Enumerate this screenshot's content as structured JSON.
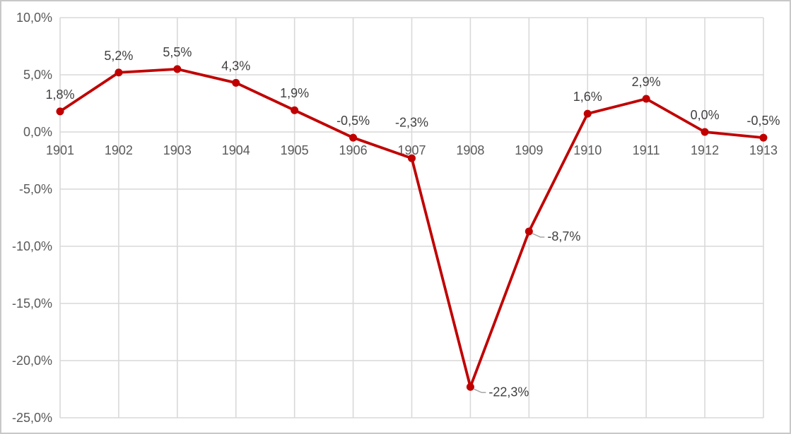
{
  "chart_data": {
    "type": "line",
    "title": "",
    "xlabel": "",
    "ylabel": "",
    "categories": [
      "1901",
      "1902",
      "1903",
      "1904",
      "1905",
      "1906",
      "1907",
      "1908",
      "1909",
      "1910",
      "1911",
      "1912",
      "1913"
    ],
    "values": [
      1.8,
      5.2,
      5.5,
      4.3,
      1.9,
      -0.5,
      -2.3,
      -22.3,
      -8.7,
      1.6,
      2.9,
      0.0,
      -0.5
    ],
    "point_labels": [
      "1,8%",
      "5,2%",
      "5,5%",
      "4,3%",
      "1,9%",
      "-0,5%",
      "-2,3%",
      "-22,3%",
      "-8,7%",
      "1,6%",
      "2,9%",
      "0,0%",
      "-0,5%"
    ],
    "label_placement": [
      "above",
      "above",
      "above",
      "above",
      "above",
      "above",
      "high-above",
      "right",
      "right",
      "above",
      "above",
      "above",
      "above"
    ],
    "ylim": [
      -25,
      10
    ],
    "ytick_step": 5,
    "ytick_labels": [
      "10,0%",
      "5,0%",
      "0,0%",
      "-5,0%",
      "-10,0%",
      "-15,0%",
      "-20,0%",
      "-25,0%"
    ],
    "grid": true,
    "legend": "none",
    "decimal_separator": ",",
    "colors": {
      "line": "#c00000",
      "marker": "#c00000",
      "gridline": "#d9d9d9",
      "axis_text": "#595959",
      "data_label_text": "#404040",
      "leader_line": "#a6a6a6",
      "frame_border": "#c8c8c8",
      "background": "#ffffff"
    }
  }
}
